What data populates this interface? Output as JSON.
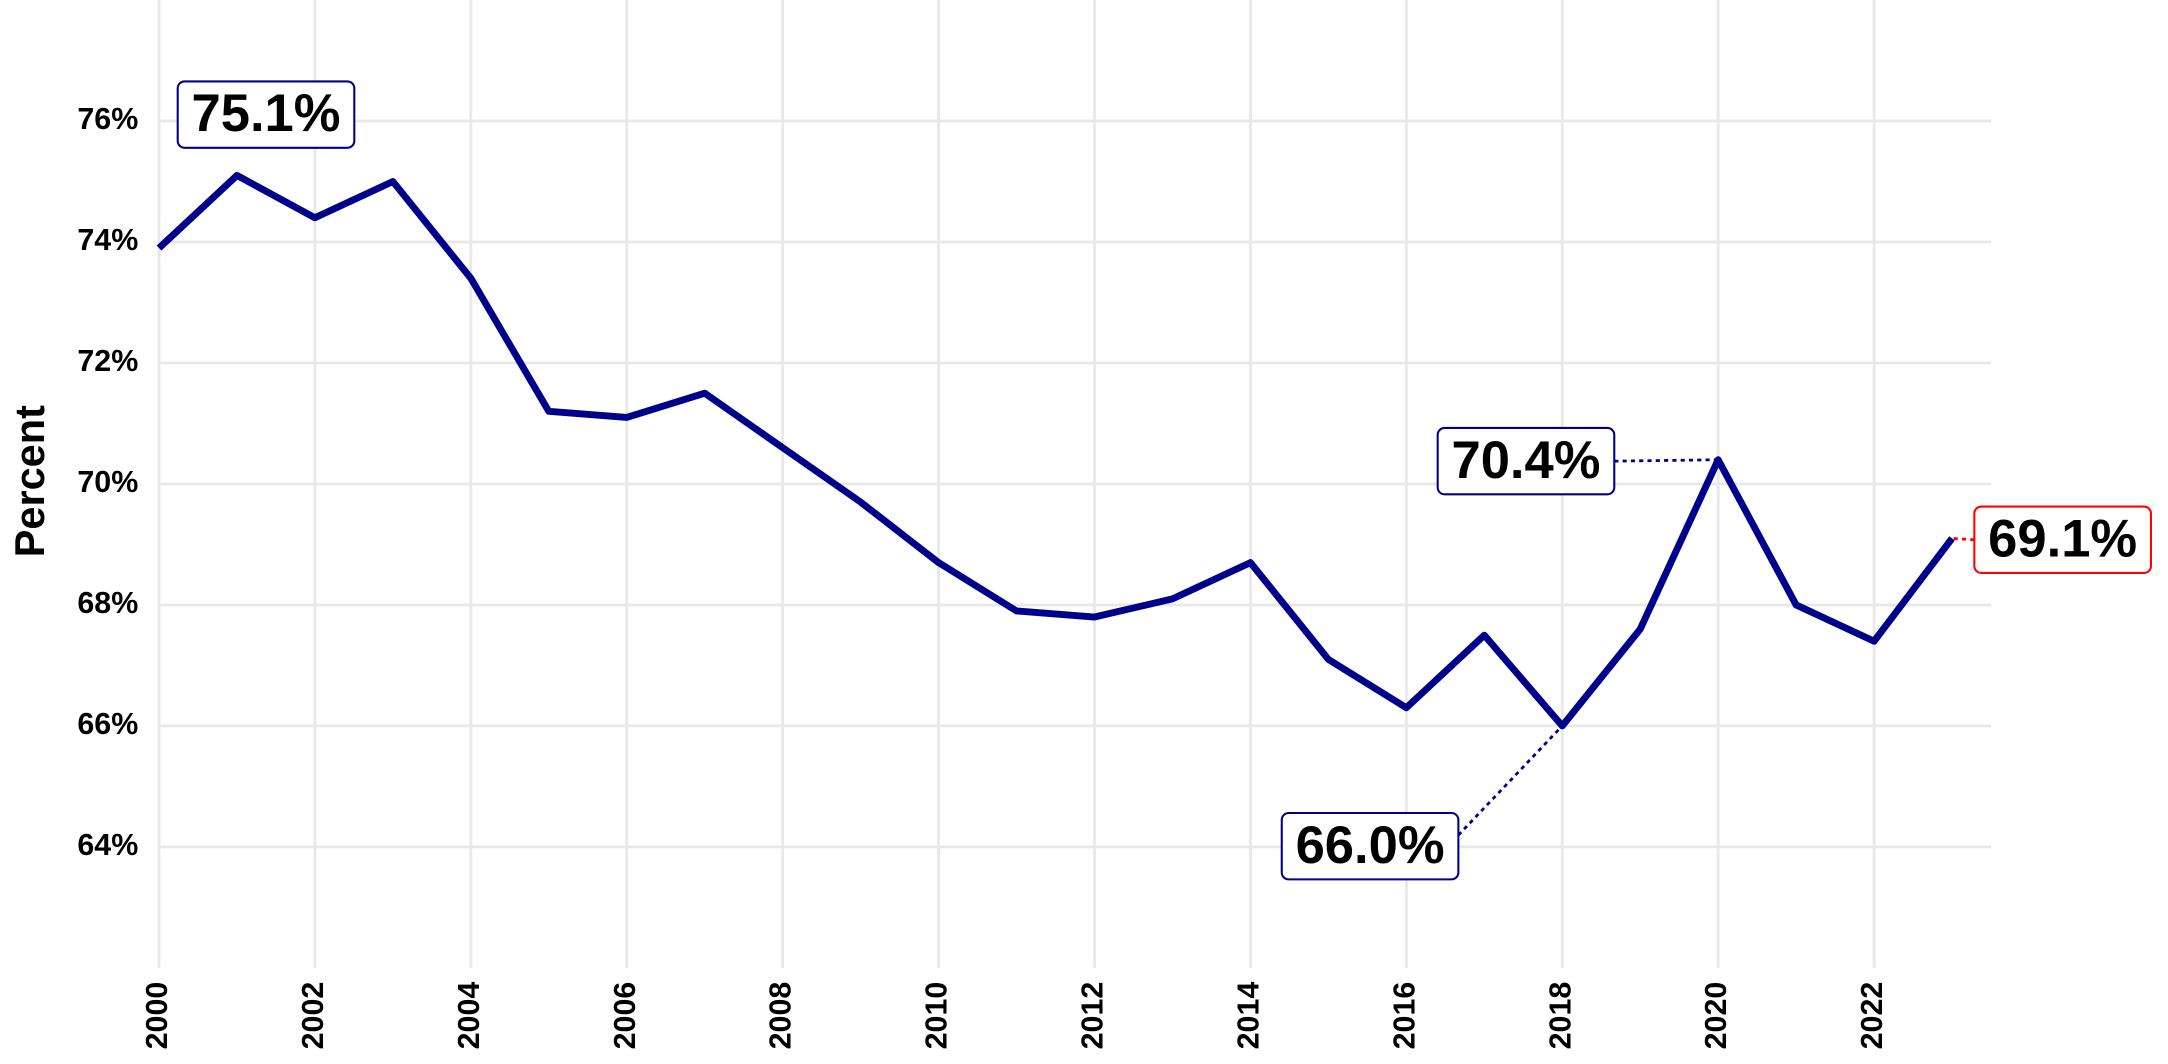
{
  "chart_data": {
    "type": "line",
    "y_label": "Percent",
    "x": [
      2000,
      2001,
      2002,
      2003,
      2004,
      2005,
      2006,
      2007,
      2008,
      2009,
      2010,
      2011,
      2012,
      2013,
      2014,
      2015,
      2016,
      2017,
      2018,
      2019,
      2020,
      2021,
      2022,
      2023
    ],
    "values": [
      73.9,
      75.1,
      74.4,
      75.0,
      73.4,
      71.2,
      71.1,
      71.5,
      70.6,
      69.7,
      68.7,
      67.9,
      67.8,
      68.1,
      68.7,
      67.1,
      66.3,
      67.5,
      66.0,
      67.6,
      70.4,
      68.0,
      67.4,
      69.1
    ],
    "value_labels": [
      null,
      "75.1%",
      null,
      null,
      null,
      null,
      null,
      null,
      null,
      null,
      null,
      null,
      null,
      null,
      null,
      null,
      null,
      null,
      "66.0%",
      null,
      "70.4%",
      null,
      null,
      "69.1%"
    ],
    "color": "#00008b",
    "last_label_color": "#ff0000",
    "xlim": [
      2000,
      2023.5
    ],
    "xticks": [
      2000,
      2002,
      2004,
      2006,
      2008,
      2010,
      2012,
      2014,
      2016,
      2018,
      2020,
      2022
    ],
    "ylim": [
      62,
      78
    ],
    "yticks": [
      {
        "value": 64,
        "label": "64%"
      },
      {
        "value": 66,
        "label": "66%"
      },
      {
        "value": 68,
        "label": "68%"
      },
      {
        "value": 70,
        "label": "70%"
      },
      {
        "value": 72,
        "label": "72%"
      },
      {
        "value": 74,
        "label": "74%"
      },
      {
        "value": 76,
        "label": "76%"
      }
    ],
    "grid": true
  }
}
